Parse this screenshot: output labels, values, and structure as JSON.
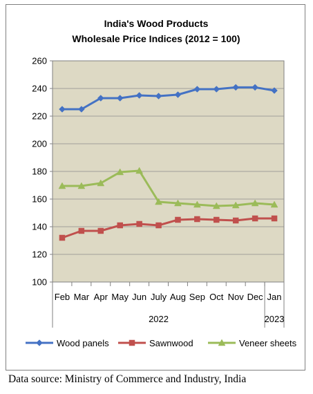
{
  "chart_data": {
    "type": "line",
    "title": "India's Wood Products",
    "subtitle": "Wholesale Price Indices (2012 = 100)",
    "categories": [
      "Feb",
      "Mar",
      "Apr",
      "May",
      "Jun",
      "July",
      "Aug",
      "Sep",
      "Oct",
      "Nov",
      "Dec",
      "Jan"
    ],
    "year_groups": [
      {
        "label": "2022",
        "count": 11
      },
      {
        "label": "2023",
        "count": 1
      }
    ],
    "series": [
      {
        "name": "Wood panels",
        "color": "#4472C4",
        "marker": "diamond",
        "values": [
          225,
          225,
          233,
          233,
          235,
          234.5,
          235.5,
          239.5,
          239.5,
          240.8,
          240.8,
          238.5
        ]
      },
      {
        "name": "Sawnwood",
        "color": "#C0504D",
        "marker": "square",
        "values": [
          132,
          137,
          137,
          141,
          142,
          141,
          145,
          145.5,
          145,
          144.5,
          146,
          146
        ]
      },
      {
        "name": "Veneer sheets",
        "color": "#9BBB59",
        "marker": "triangle",
        "values": [
          169.5,
          169.5,
          171.5,
          179.5,
          180.5,
          158,
          157,
          156,
          155,
          155.5,
          157,
          156
        ]
      }
    ],
    "yticks": [
      100,
      120,
      140,
      160,
      180,
      200,
      220,
      240,
      260
    ],
    "ylim": [
      100,
      260
    ],
    "grid": true,
    "plot_background": "#DDD9C4",
    "legend_position": "bottom"
  },
  "source_note": "Data source: Ministry of Commerce and Industry, India"
}
